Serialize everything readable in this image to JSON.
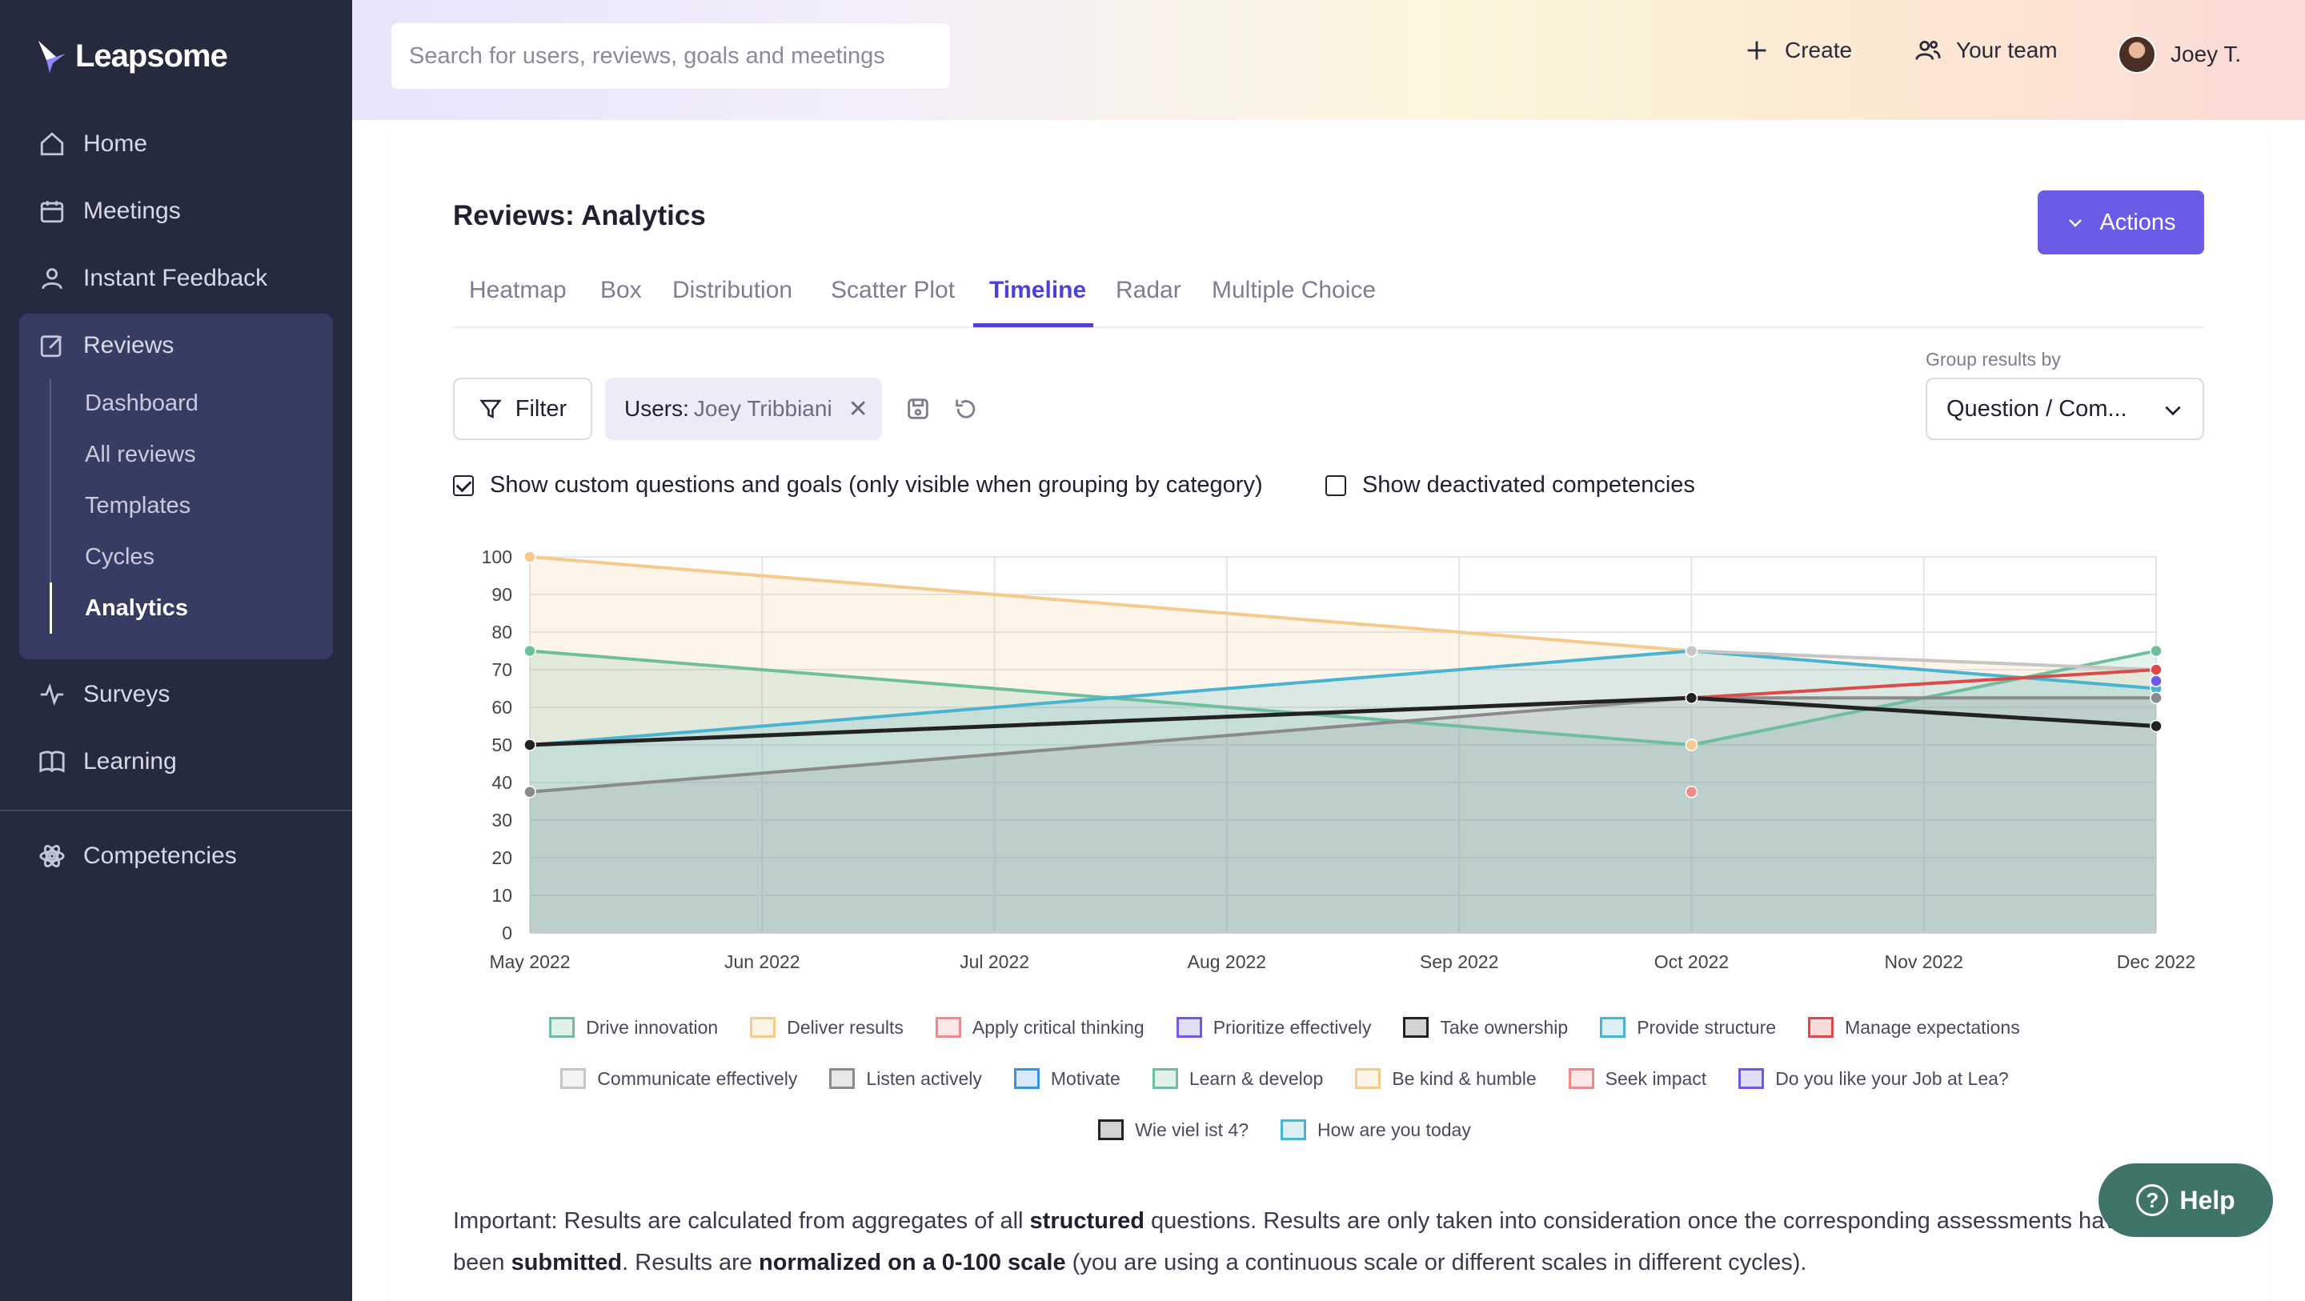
{
  "brand": {
    "name": "Leapsome"
  },
  "sidebar": {
    "items": [
      {
        "label": "Home",
        "icon": "home-icon"
      },
      {
        "label": "Meetings",
        "icon": "calendar-icon"
      },
      {
        "label": "Instant Feedback",
        "icon": "feedback-icon"
      },
      {
        "label": "Reviews",
        "icon": "edit-icon"
      },
      {
        "label": "Surveys",
        "icon": "pulse-icon"
      },
      {
        "label": "Learning",
        "icon": "book-icon"
      },
      {
        "label": "Competencies",
        "icon": "atom-icon"
      }
    ],
    "review_subitems": [
      "Dashboard",
      "All reviews",
      "Templates",
      "Cycles",
      "Analytics"
    ]
  },
  "topbar": {
    "search_placeholder": "Search for users, reviews, goals and meetings",
    "create_label": "Create",
    "team_label": "Your team",
    "user_name": "Joey T."
  },
  "page": {
    "title": "Reviews: Analytics",
    "actions_label": "Actions",
    "tabs": [
      "Heatmap",
      "Box",
      "Distribution",
      "Scatter Plot",
      "Timeline",
      "Radar",
      "Multiple Choice"
    ],
    "active_tab": "Timeline",
    "filter_label": "Filter",
    "chip_label": "Users:",
    "chip_value": "Joey Tribbiani",
    "group_label": "Group results by",
    "group_value": "Question / Com...",
    "checkbox1": "Show custom questions and goals (only visible when grouping by category)",
    "checkbox2": "Show deactivated competencies"
  },
  "chart_data": {
    "type": "line",
    "x": [
      "May 2022",
      "Jun 2022",
      "Jul 2022",
      "Aug 2022",
      "Sep 2022",
      "Oct 2022",
      "Nov 2022",
      "Dec 2022"
    ],
    "y_ticks": [
      0,
      10,
      20,
      30,
      40,
      50,
      60,
      70,
      80,
      90,
      100
    ],
    "ylim": [
      0,
      100
    ],
    "grid": true,
    "legend_position": "bottom",
    "series": [
      {
        "name": "Deliver results",
        "color": "#f6c98c",
        "fill": true,
        "points": [
          [
            "May 2022",
            100
          ],
          [
            "Oct 2022",
            75
          ],
          [
            "Dec 2022",
            70
          ]
        ]
      },
      {
        "name": "Learn & develop",
        "color": "#6fbf9c",
        "fill": true,
        "points": [
          [
            "May 2022",
            75
          ],
          [
            "Oct 2022",
            50
          ],
          [
            "Dec 2022",
            75
          ]
        ]
      },
      {
        "name": "Provide structure",
        "color": "#48b4cf",
        "fill": true,
        "points": [
          [
            "May 2022",
            50
          ],
          [
            "Oct 2022",
            75
          ],
          [
            "Dec 2022",
            65
          ]
        ]
      },
      {
        "name": "Listen actively",
        "color": "#8a8a8a",
        "fill": true,
        "points": [
          [
            "May 2022",
            37.5
          ],
          [
            "Oct 2022",
            62.5
          ],
          [
            "Dec 2022",
            62.5
          ]
        ]
      },
      {
        "name": "Communicate effectively",
        "color": "#c6c6c6",
        "fill": false,
        "points": [
          [
            "Oct 2022",
            75
          ],
          [
            "Dec 2022",
            70
          ]
        ]
      },
      {
        "name": "Manage expectations",
        "color": "#dd4a4a",
        "fill": false,
        "points": [
          [
            "Oct 2022",
            62.5
          ],
          [
            "Dec 2022",
            70
          ]
        ]
      },
      {
        "name": "Seek impact",
        "color": "#ef8a8a",
        "fill": false,
        "points": [
          [
            "Oct 2022",
            37.5
          ]
        ]
      },
      {
        "name": "Be kind & humble",
        "color": "#f6c98c",
        "fill": false,
        "points": [
          [
            "Oct 2022",
            50
          ]
        ]
      },
      {
        "name": "Prioritize effectively",
        "color": "#6a5ce6",
        "fill": false,
        "points": [
          [
            "Dec 2022",
            67
          ]
        ]
      },
      {
        "name": "Take ownership",
        "color": "#222222",
        "fill": false,
        "points": [
          [
            "May 2022",
            50
          ],
          [
            "Oct 2022",
            62.5
          ],
          [
            "Dec 2022",
            55
          ]
        ]
      }
    ],
    "legend": [
      [
        {
          "name": "Drive innovation",
          "color": "#6fbf9c"
        },
        {
          "name": "Deliver results",
          "color": "#f6c98c"
        },
        {
          "name": "Apply critical thinking",
          "color": "#ef8a8a"
        },
        {
          "name": "Prioritize effectively",
          "color": "#6a5ce6"
        },
        {
          "name": "Take ownership",
          "color": "#222222"
        },
        {
          "name": "Provide structure",
          "color": "#48b4cf"
        },
        {
          "name": "Manage expectations",
          "color": "#dd4a4a"
        }
      ],
      [
        {
          "name": "Communicate effectively",
          "color": "#c6c6c6"
        },
        {
          "name": "Listen actively",
          "color": "#8a8a8a"
        },
        {
          "name": "Motivate",
          "color": "#3d8fe0"
        },
        {
          "name": "Learn & develop",
          "color": "#6fbf9c"
        },
        {
          "name": "Be kind & humble",
          "color": "#f6c98c"
        },
        {
          "name": "Seek impact",
          "color": "#ef8a8a"
        },
        {
          "name": "Do you like your Job at Lea?",
          "color": "#6a5ce6"
        }
      ],
      [
        {
          "name": "Wie viel ist 4?",
          "color": "#222222"
        },
        {
          "name": "How are you today",
          "color": "#48b4cf"
        }
      ]
    ]
  },
  "note": {
    "p1": "Important: Results are calculated from aggregates of all ",
    "b1": "structured",
    "p2": " questions. Results are only taken into consideration once the corresponding assessments have",
    "p3": "been ",
    "b2": "submitted",
    "p4": ". Results are ",
    "b3": "normalized on a 0-100 scale",
    "p5": " (you are using a continuous scale or different scales in different cycles)."
  },
  "help_label": "Help",
  "colors": {
    "sidebar": "#262a3f",
    "accent": "#6a5ce6",
    "help": "#3f7468"
  }
}
